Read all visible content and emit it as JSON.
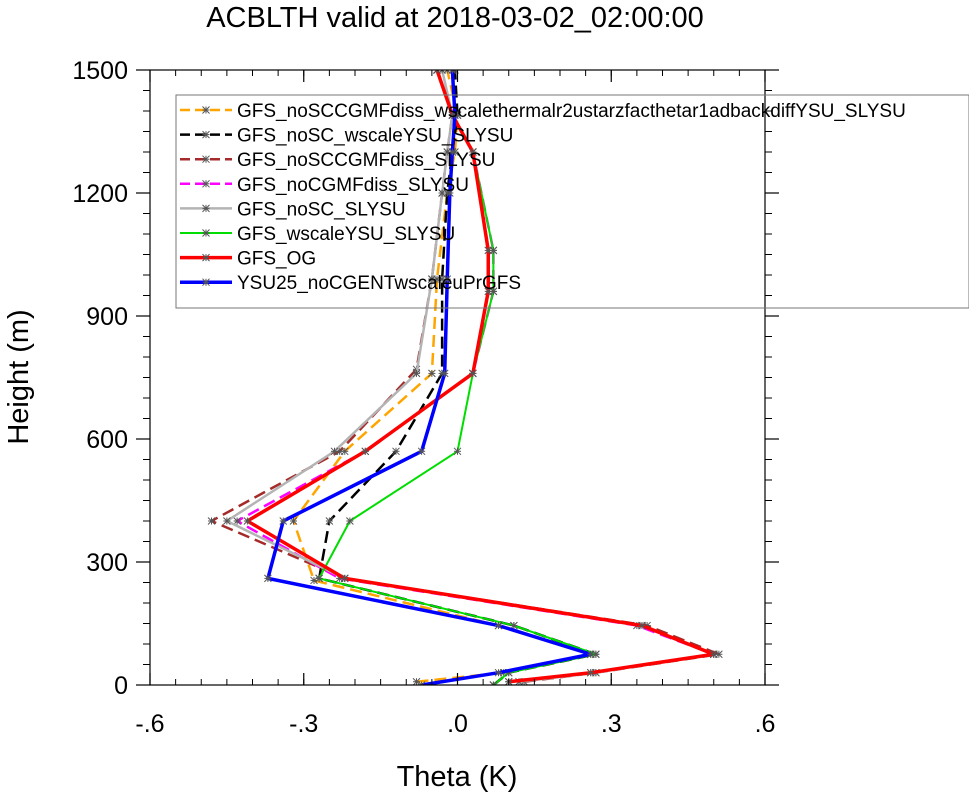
{
  "chart_data": {
    "type": "line",
    "title": "ACBLTH valid at 2018-03-02_02:00:00",
    "xlabel": "Theta (K)",
    "ylabel": "Height (m)",
    "xlim": [
      -0.6,
      0.6
    ],
    "ylim": [
      0,
      1500
    ],
    "xticks": [
      -0.6,
      -0.3,
      0.0,
      0.3,
      0.6
    ],
    "xtick_labels": [
      "-.6",
      "-.3",
      ".0",
      ".3",
      ".6"
    ],
    "yticks": [
      0,
      300,
      600,
      900,
      1200,
      1500
    ],
    "ytick_labels": [
      "0",
      "300",
      "600",
      "900",
      "1200",
      "1500"
    ],
    "grid": false,
    "legend_position": "top-right",
    "series": [
      {
        "name": "GFS_noSCCGMFdiss_wscalethermalr2ustarzfacthetar1adbackdiffYSU_SLYSU",
        "color": "#ffa500",
        "dashed": true,
        "width": 2.5,
        "x": [
          -0.08,
          0.09,
          0.26,
          0.08,
          -0.28,
          -0.32,
          -0.22,
          -0.05,
          -0.04,
          -0.02,
          -0.005,
          0.0,
          -0.02
        ],
        "y": [
          8,
          30,
          75,
          145,
          255,
          400,
          570,
          760,
          990,
          1200,
          1300,
          1390,
          1500
        ]
      },
      {
        "name": "GFS_noSC_wscaleYSU_SLYSU",
        "color": "#000000",
        "dashed": true,
        "width": 2.5,
        "x": [
          0.07,
          0.1,
          0.27,
          0.11,
          -0.27,
          -0.25,
          -0.12,
          -0.03,
          -0.03,
          -0.02,
          -0.01,
          0.0,
          -0.005
        ],
        "y": [
          0,
          30,
          75,
          145,
          260,
          400,
          570,
          760,
          990,
          1200,
          1300,
          1390,
          1500
        ]
      },
      {
        "name": "GFS_noSCCGMFdiss_SLYSU",
        "color": "#a52a2a",
        "dashed": true,
        "width": 2.5,
        "x": [
          0.13,
          0.27,
          0.51,
          0.37,
          -0.22,
          -0.48,
          -0.23,
          -0.08,
          -0.05,
          -0.03,
          -0.02,
          -0.01,
          -0.04
        ],
        "y": [
          8,
          30,
          75,
          145,
          260,
          400,
          570,
          770,
          990,
          1200,
          1300,
          1390,
          1500
        ]
      },
      {
        "name": "GFS_noCGMFdiss_SLYSU",
        "color": "#ff00ff",
        "dashed": true,
        "width": 2.5,
        "x": [
          0.1,
          0.26,
          0.5,
          0.35,
          -0.23,
          -0.43,
          -0.18,
          0.03,
          0.07,
          0.07,
          0.03,
          -0.01,
          -0.04
        ],
        "y": [
          8,
          30,
          75,
          145,
          260,
          400,
          570,
          760,
          960,
          1060,
          1300,
          1390,
          1500
        ]
      },
      {
        "name": "GFS_noSC_SLYSU",
        "color": "#b4b4b4",
        "dashed": false,
        "width": 2.5,
        "x": [
          0.12,
          0.27,
          0.5,
          0.36,
          -0.22,
          -0.45,
          -0.24,
          -0.08,
          -0.05,
          -0.03,
          -0.02,
          -0.01,
          -0.03
        ],
        "y": [
          8,
          30,
          75,
          145,
          260,
          400,
          570,
          760,
          990,
          1200,
          1300,
          1390,
          1500
        ]
      },
      {
        "name": "GFS_wscaleYSU_SLYSU",
        "color": "#00dd00",
        "dashed": false,
        "width": 2,
        "x": [
          0.07,
          0.1,
          0.27,
          0.11,
          -0.27,
          -0.21,
          0.0,
          0.03,
          0.07,
          0.07,
          0.03,
          -0.01,
          -0.04
        ],
        "y": [
          0,
          30,
          75,
          145,
          260,
          400,
          570,
          760,
          960,
          1060,
          1300,
          1390,
          1500
        ]
      },
      {
        "name": "GFS_OG",
        "color": "#ff0000",
        "dashed": false,
        "width": 3.5,
        "x": [
          0.1,
          0.26,
          0.5,
          0.36,
          -0.22,
          -0.41,
          -0.18,
          0.03,
          0.06,
          0.06,
          0.03,
          -0.01,
          -0.04
        ],
        "y": [
          8,
          30,
          75,
          145,
          260,
          400,
          570,
          760,
          960,
          1060,
          1300,
          1390,
          1500
        ]
      },
      {
        "name": "YSU25_noCGENTwscaleuPrGFS",
        "color": "#0000ff",
        "dashed": false,
        "width": 3.5,
        "x": [
          -0.07,
          0.08,
          0.26,
          0.08,
          -0.37,
          -0.34,
          -0.07,
          -0.025,
          -0.02,
          -0.015,
          -0.01,
          -0.005,
          -0.01
        ],
        "y": [
          0,
          30,
          75,
          145,
          260,
          400,
          570,
          760,
          990,
          1200,
          1300,
          1390,
          1500
        ]
      }
    ]
  }
}
